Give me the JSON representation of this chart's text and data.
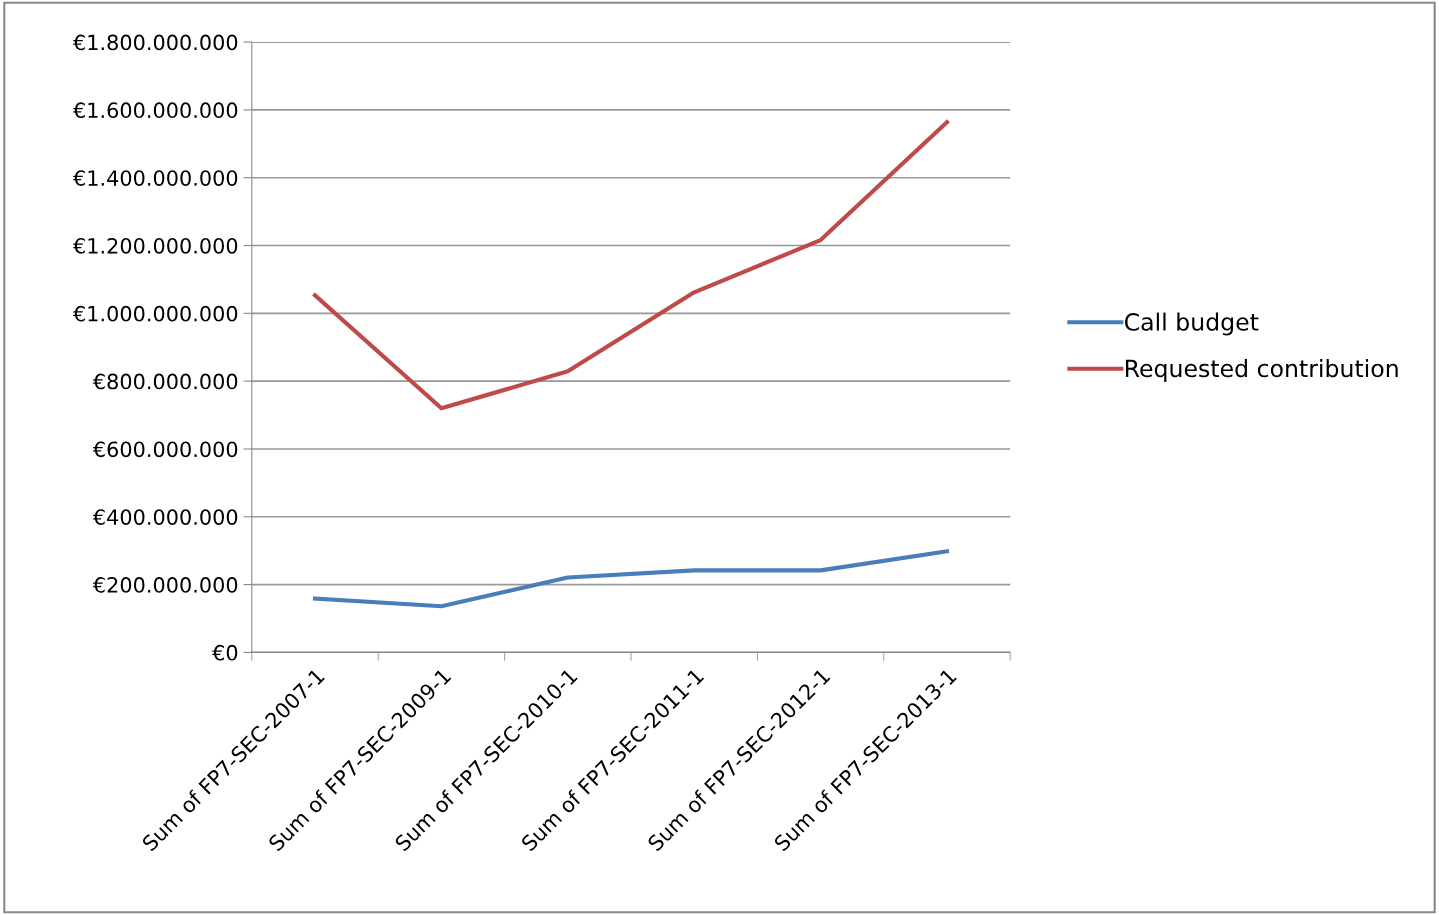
{
  "chart_data": {
    "type": "line",
    "categories": [
      "Sum of FP7-SEC-2007-1",
      "Sum of FP7-SEC-2009-1",
      "Sum of FP7-SEC-2010-1",
      "Sum of FP7-SEC-2011-1",
      "Sum of FP7-SEC-2012-1",
      "Sum of FP7-SEC-2013-1"
    ],
    "series": [
      {
        "name": "Call budget",
        "color": "#4a7ebb",
        "values": [
          159000000,
          136000000,
          221000000,
          242000000,
          242000000,
          298000000
        ]
      },
      {
        "name": "Requested contribution",
        "color": "#be4b48",
        "values": [
          1053000000,
          720000000,
          829000000,
          1062000000,
          1216000000,
          1564000000
        ]
      }
    ],
    "ylim": [
      0,
      1800000000
    ],
    "yticks": [
      {
        "value": 0,
        "label": "€0"
      },
      {
        "value": 200000000,
        "label": "€200.000.000"
      },
      {
        "value": 400000000,
        "label": "€400.000.000"
      },
      {
        "value": 600000000,
        "label": "€600.000.000"
      },
      {
        "value": 800000000,
        "label": "€800.000.000"
      },
      {
        "value": 1000000000,
        "label": "€1.000.000.000"
      },
      {
        "value": 1200000000,
        "label": "€1.200.000.000"
      },
      {
        "value": 1400000000,
        "label": "€1.400.000.000"
      },
      {
        "value": 1600000000,
        "label": "€1.600.000.000"
      },
      {
        "value": 1800000000,
        "label": "€1.800.000.000"
      }
    ],
    "grid": "y",
    "legend": "right",
    "marker": "none",
    "line_style": "solid"
  }
}
